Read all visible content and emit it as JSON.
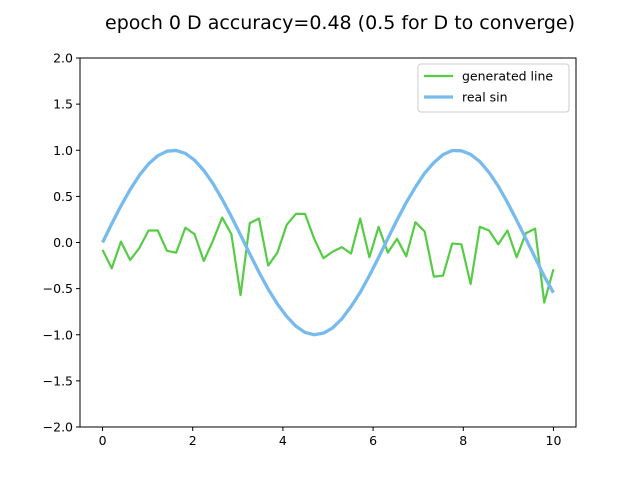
{
  "chart_data": {
    "type": "line",
    "title": "epoch  0 D accuracy=0.48 (0.5 for D to converge)",
    "xlabel": "",
    "ylabel": "",
    "xlim": [
      -0.5,
      10.5
    ],
    "ylim": [
      -2.0,
      2.0
    ],
    "xticks": [
      "0",
      "2",
      "4",
      "6",
      "8",
      "10"
    ],
    "yticks": [
      "−2.0",
      "−1.5",
      "−1.0",
      "−0.5",
      "0.0",
      "0.5",
      "1.0",
      "1.5",
      "2.0"
    ],
    "grid": false,
    "legend_position": "top-right",
    "series": [
      {
        "name": "generated line",
        "color": "#55cc44",
        "x": [
          0.0,
          0.204,
          0.408,
          0.612,
          0.816,
          1.02,
          1.224,
          1.429,
          1.633,
          1.837,
          2.041,
          2.245,
          2.449,
          2.653,
          2.857,
          3.061,
          3.265,
          3.469,
          3.673,
          3.878,
          4.082,
          4.286,
          4.49,
          4.694,
          4.898,
          5.102,
          5.306,
          5.51,
          5.714,
          5.918,
          6.122,
          6.327,
          6.531,
          6.735,
          6.939,
          7.143,
          7.347,
          7.551,
          7.755,
          7.959,
          8.163,
          8.367,
          8.571,
          8.776,
          8.98,
          9.184,
          9.388,
          9.592,
          9.796,
          10.0
        ],
        "y": [
          -0.08,
          -0.28,
          0.01,
          -0.19,
          -0.06,
          0.13,
          0.13,
          -0.09,
          -0.11,
          0.16,
          0.09,
          -0.2,
          0.02,
          0.27,
          0.09,
          -0.57,
          0.21,
          0.26,
          -0.25,
          -0.11,
          0.19,
          0.31,
          0.31,
          0.04,
          -0.17,
          -0.1,
          -0.05,
          -0.12,
          0.26,
          -0.16,
          0.17,
          -0.11,
          0.04,
          -0.15,
          0.22,
          0.12,
          -0.37,
          -0.36,
          -0.01,
          -0.02,
          -0.45,
          0.17,
          0.13,
          -0.02,
          0.13,
          -0.16,
          0.1,
          0.15,
          -0.65,
          -0.29
        ]
      },
      {
        "name": "real sin",
        "color": "#77bbee",
        "x": [
          0.0,
          0.204,
          0.408,
          0.612,
          0.816,
          1.02,
          1.224,
          1.429,
          1.633,
          1.837,
          2.041,
          2.245,
          2.449,
          2.653,
          2.857,
          3.061,
          3.265,
          3.469,
          3.673,
          3.878,
          4.082,
          4.286,
          4.49,
          4.694,
          4.898,
          5.102,
          5.306,
          5.51,
          5.714,
          5.918,
          6.122,
          6.327,
          6.531,
          6.735,
          6.939,
          7.143,
          7.347,
          7.551,
          7.755,
          7.959,
          8.163,
          8.367,
          8.571,
          8.776,
          8.98,
          9.184,
          9.388,
          9.592,
          9.796,
          10.0
        ],
        "y": [
          0.0,
          0.203,
          0.397,
          0.574,
          0.728,
          0.852,
          0.94,
          0.99,
          0.998,
          0.965,
          0.892,
          0.782,
          0.639,
          0.469,
          0.281,
          0.081,
          -0.123,
          -0.321,
          -0.505,
          -0.667,
          -0.801,
          -0.907,
          -0.975,
          -1.0,
          -0.983,
          -0.926,
          -0.828,
          -0.695,
          -0.541,
          -0.359,
          -0.161,
          0.043,
          0.244,
          0.433,
          0.601,
          0.751,
          0.866,
          0.952,
          0.997,
          0.994,
          0.955,
          0.877,
          0.76,
          0.611,
          0.434,
          0.241,
          0.04,
          -0.163,
          -0.367,
          -0.544
        ]
      }
    ]
  }
}
